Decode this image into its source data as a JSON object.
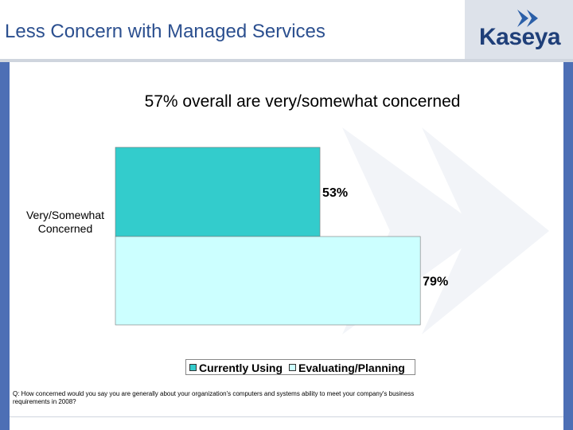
{
  "slide": {
    "title": "Less Concern with Managed Services",
    "logo": "Kaseya",
    "question": "Q: How concerned would you say you are generally about your organization's computers and systems ability to meet your company's business requirements in 2008?"
  },
  "chart_data": {
    "type": "bar",
    "orientation": "horizontal",
    "title": "57% overall are very/somewhat concerned",
    "categories": [
      "Very/Somewhat Concerned"
    ],
    "series": [
      {
        "name": "Currently Using",
        "values": [
          53
        ],
        "label": "53%",
        "color": "#33cccc"
      },
      {
        "name": "Evaluating/Planning",
        "values": [
          79
        ],
        "label": "79%",
        "color": "#ccffff"
      }
    ],
    "xlim": [
      0,
      100
    ],
    "legend": "bottom",
    "grid": false
  }
}
